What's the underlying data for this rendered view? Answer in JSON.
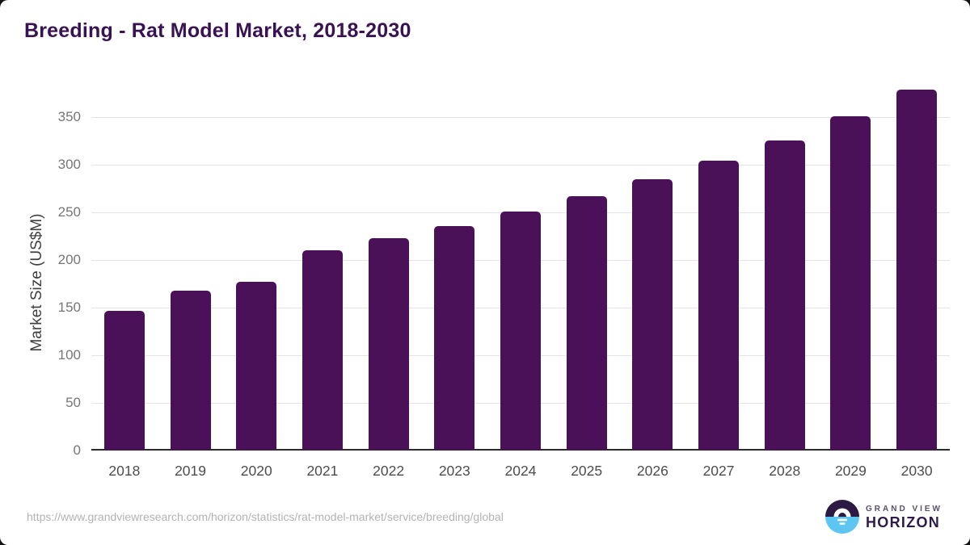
{
  "header": {
    "title": "Breeding - Rat Model Market, 2018-2030"
  },
  "chart_data": {
    "type": "bar",
    "title": "Breeding - Rat Model Market, 2018-2030",
    "categories": [
      "2018",
      "2019",
      "2020",
      "2021",
      "2022",
      "2023",
      "2024",
      "2025",
      "2026",
      "2027",
      "2028",
      "2029",
      "2030"
    ],
    "values": [
      146,
      167,
      176,
      209,
      222,
      235,
      250,
      266,
      284,
      303,
      325,
      350,
      378
    ],
    "xlabel": "",
    "ylabel": "Market Size (US$M)",
    "yticks": [
      0,
      50,
      100,
      150,
      200,
      250,
      300,
      350
    ],
    "ylim": [
      0,
      381
    ],
    "grid": true,
    "legend": false,
    "bar_color": "#4a1158"
  },
  "colors": {
    "bar": "#4a1158",
    "title": "#381253",
    "gridline": "#e4e4e4",
    "axis_line": "#2b2b2b",
    "y_tick_label": "#767676",
    "x_tick_label": "#4d4d4d",
    "footer_text": "#b3b3b3",
    "logo_purple": "#2c1a44",
    "logo_blue": "#5cc6f0",
    "logo_text_dark": "#2e1b49",
    "logo_text_gray": "#585068"
  },
  "footer": {
    "source_url": "https://www.grandviewresearch.com/horizon/statistics/rat-model-market/service/breeding/global",
    "logo": {
      "line1": "GRAND VIEW",
      "line2": "HORIZON"
    }
  }
}
